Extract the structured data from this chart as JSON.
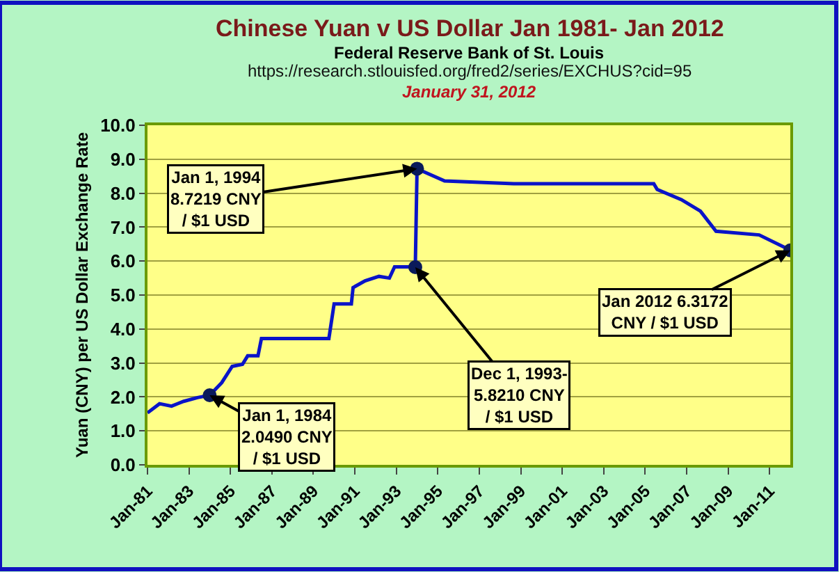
{
  "chart_data": {
    "type": "line",
    "title": "Chinese Yuan v US Dollar Jan 1981- Jan 2012",
    "subtitle": "Federal Reserve Bank of St. Louis",
    "ylabel": "Yuan (CNY) per US Dollar Exchange Rate",
    "x": [
      "1981-01",
      "1981-08",
      "1982-03",
      "1982-10",
      "1983-06",
      "1984-01",
      "1984-08",
      "1985-02",
      "1985-08",
      "1985-11",
      "1986-05",
      "1986-07",
      "1989-10",
      "1990-01",
      "1990-11",
      "1990-12",
      "1991-07",
      "1992-03",
      "1992-09",
      "1992-12",
      "1993-08",
      "1993-12",
      "1994-01",
      "1995-05",
      "1998-09",
      "2005-06",
      "2005-08",
      "2006-10",
      "2007-09",
      "2008-06",
      "2010-07",
      "2012-01"
    ],
    "series": [
      {
        "color": "#0a14c8",
        "values": [
          1.53,
          1.8,
          1.73,
          1.87,
          1.98,
          2.05,
          2.42,
          2.9,
          2.96,
          3.21,
          3.21,
          3.72,
          3.72,
          4.74,
          4.74,
          5.22,
          5.42,
          5.55,
          5.5,
          5.83,
          5.83,
          5.82,
          8.72,
          8.36,
          8.28,
          8.28,
          8.11,
          7.81,
          7.47,
          6.88,
          6.77,
          6.32
        ]
      }
    ],
    "xlim": [
      "1981-01",
      "2012-01"
    ],
    "xticks": [
      {
        "value": "1981-01",
        "label": "Jan-81"
      },
      {
        "value": "1983-01",
        "label": "Jan-83"
      },
      {
        "value": "1985-01",
        "label": "Jan-85"
      },
      {
        "value": "1987-01",
        "label": "Jan-87"
      },
      {
        "value": "1989-01",
        "label": "Jan-89"
      },
      {
        "value": "1991-01",
        "label": "Jan-91"
      },
      {
        "value": "1993-01",
        "label": "Jan-93"
      },
      {
        "value": "1995-01",
        "label": "Jan-95"
      },
      {
        "value": "1997-01",
        "label": "Jan-97"
      },
      {
        "value": "1999-01",
        "label": "Jan-99"
      },
      {
        "value": "2001-01",
        "label": "Jan-01"
      },
      {
        "value": "2003-01",
        "label": "Jan-03"
      },
      {
        "value": "2005-01",
        "label": "Jan-05"
      },
      {
        "value": "2007-01",
        "label": "Jan-07"
      },
      {
        "value": "2009-01",
        "label": "Jan-09"
      },
      {
        "value": "2011-01",
        "label": "Jan-11"
      }
    ],
    "ylim": [
      0,
      10
    ],
    "yticks": [
      {
        "value": 0,
        "label": "0.0"
      },
      {
        "value": 1,
        "label": "1.0"
      },
      {
        "value": 2,
        "label": "2.0"
      },
      {
        "value": 3,
        "label": "3.0"
      },
      {
        "value": 4,
        "label": "4.0"
      },
      {
        "value": 5,
        "label": "5.0"
      },
      {
        "value": 6,
        "label": "6.0"
      },
      {
        "value": 7,
        "label": "7.0"
      },
      {
        "value": 8,
        "label": "8.0"
      },
      {
        "value": 9,
        "label": "9.0"
      },
      {
        "value": 10,
        "label": "10.0"
      }
    ],
    "annotations": [
      "https://research.stlouisfed.org/fred2/series/EXCHUS?cid=95",
      "January 31, 2012",
      {
        "text": "Jan 1, 1984\n2.0490 CNY\n/ $1 USD",
        "x": "1984-01",
        "y": 2.049
      },
      {
        "text": "Jan 1, 1994\n8.7219 CNY\n/ $1 USD",
        "x": "1994-01",
        "y": 8.7219
      },
      {
        "text": "Dec 1, 1993-\n5.8210 CNY\n/ $1 USD",
        "x": "1993-12",
        "y": 5.821
      },
      {
        "text": "Jan 2012 6.3172\nCNY / $1 USD",
        "x": "2012-01",
        "y": 6.3172
      }
    ],
    "grid": "y",
    "marker": "none",
    "line_style": "solid"
  }
}
